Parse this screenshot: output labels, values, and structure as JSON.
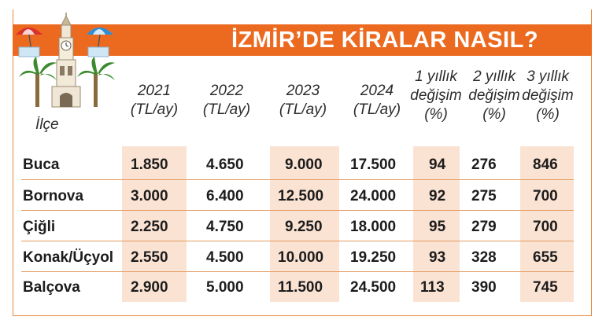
{
  "title": "İZMİR’DE KİRALAR NASIL?",
  "row_header": "İlçe",
  "columns": [
    {
      "line1": "2021",
      "line2": "(TL/ay)"
    },
    {
      "line1": "2022",
      "line2": "(TL/ay)"
    },
    {
      "line1": "2023",
      "line2": "(TL/ay)"
    },
    {
      "line1": "2024",
      "line2": "(TL/ay)"
    },
    {
      "line1": "1 yıllık",
      "line2": "değişim",
      "line3": "(%)"
    },
    {
      "line1": "2 yıllık",
      "line2": "değişim",
      "line3": "(%)"
    },
    {
      "line1": "3 yıllık",
      "line2": "değişim",
      "line3": "(%)"
    }
  ],
  "rows": [
    {
      "name": "Buca",
      "values": [
        "1.850",
        "4.650",
        "9.000",
        "17.500",
        "94",
        "276",
        "846"
      ]
    },
    {
      "name": "Bornova",
      "values": [
        "3.000",
        "6.400",
        "12.500",
        "24.000",
        "92",
        "275",
        "700"
      ]
    },
    {
      "name": "Çiğli",
      "values": [
        "2.250",
        "4.750",
        "9.250",
        "18.000",
        "95",
        "279",
        "700"
      ]
    },
    {
      "name": "Konak/Üçyol",
      "values": [
        "2.550",
        "4.500",
        "10.000",
        "19.250",
        "93",
        "328",
        "655"
      ]
    },
    {
      "name": "Balçova",
      "values": [
        "2.900",
        "5.000",
        "11.500",
        "24.500",
        "113",
        "390",
        "745"
      ]
    }
  ],
  "colors": {
    "banner": "#ec6a1f",
    "shade": "#fbe3d3",
    "rule": "#e39a5f"
  },
  "illustration_icons": [
    "clock-tower-icon",
    "palm-tree-icon",
    "beach-umbrella-icon"
  ]
}
